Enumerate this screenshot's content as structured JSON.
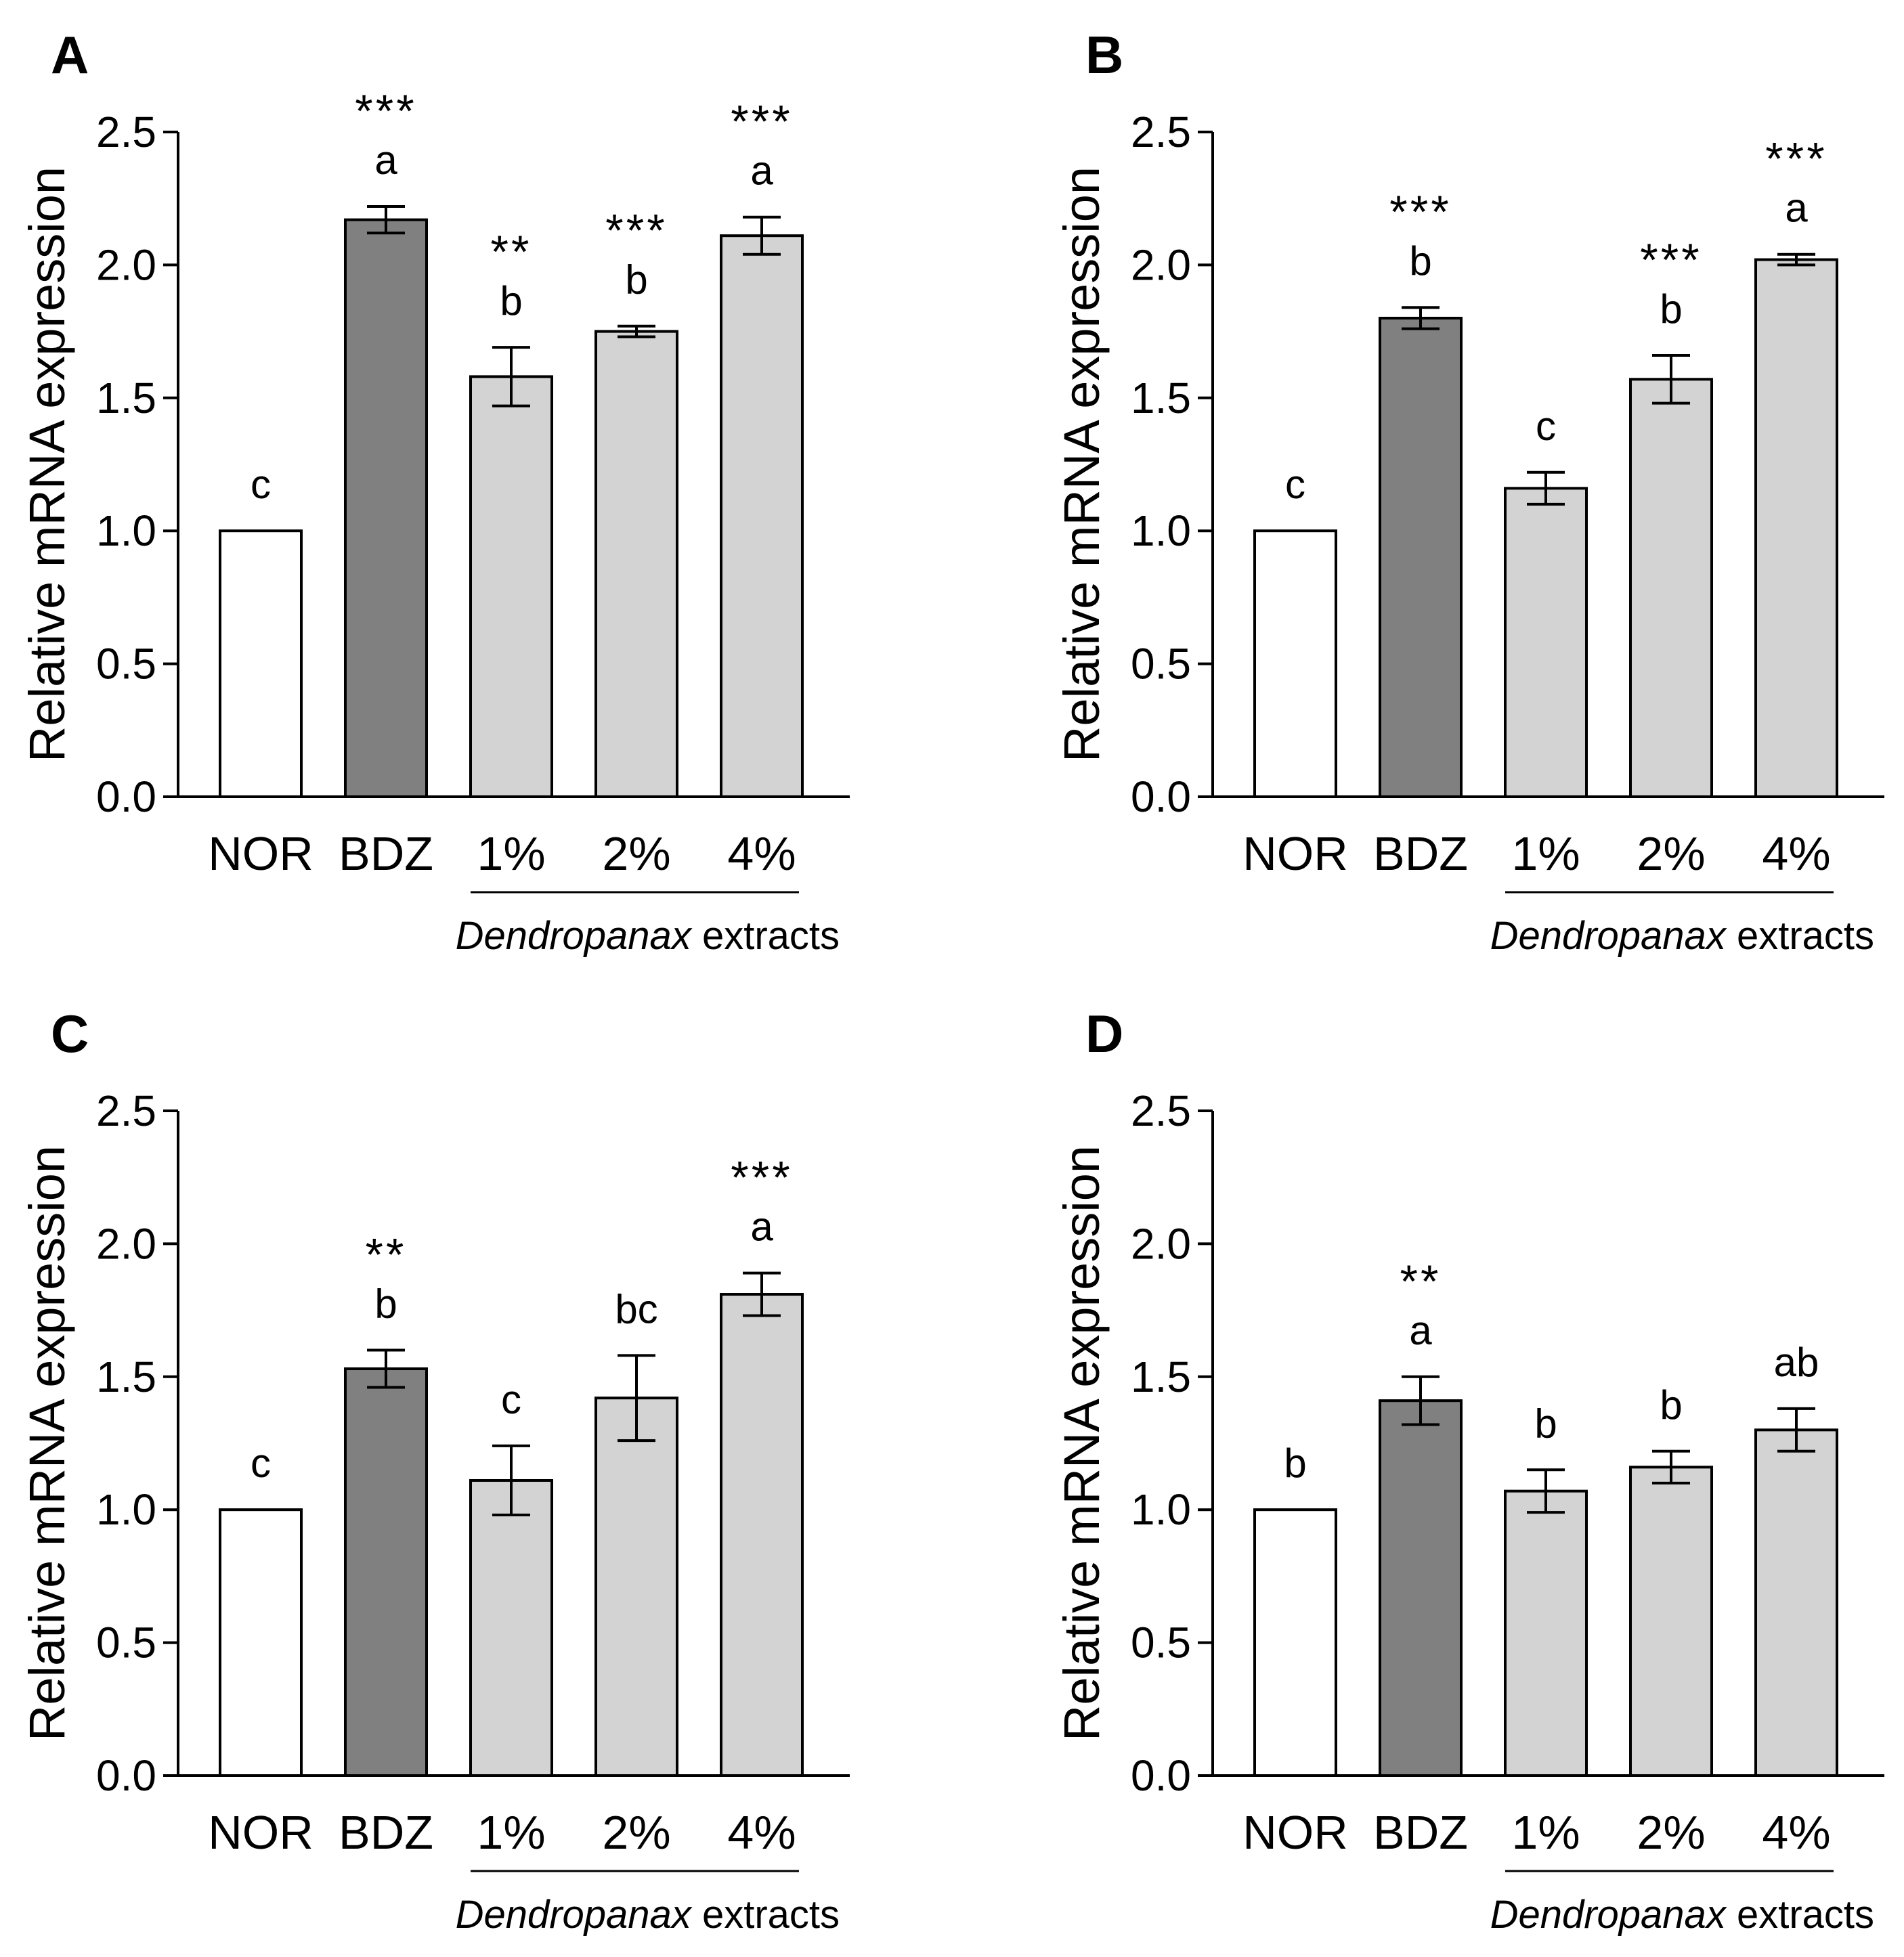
{
  "figure": {
    "categories": [
      "NOR",
      "BDZ",
      "1%",
      "2%",
      "4%"
    ],
    "group_label_italic": "Dendropanax",
    "group_label_rest": " extracts",
    "bar_colors": [
      "#ffffff",
      "#808080",
      "#d3d3d3",
      "#d3d3d3",
      "#d3d3d3"
    ]
  },
  "chart_data": [
    {
      "panel": "A",
      "type": "bar",
      "ylabel": "Relative mRNA expression",
      "ylim": [
        0,
        2.5
      ],
      "yticks": [
        "0.0",
        "0.5",
        "1.0",
        "1.5",
        "2.0",
        "2.5"
      ],
      "categories": [
        "NOR",
        "BDZ",
        "1%",
        "2%",
        "4%"
      ],
      "values": [
        1.0,
        2.17,
        1.58,
        1.75,
        2.11
      ],
      "errors": [
        0,
        0.05,
        0.11,
        0.02,
        0.07
      ],
      "letters": [
        "c",
        "a",
        "b",
        "b",
        "a"
      ],
      "stars": [
        "",
        "***",
        "**",
        "***",
        "***"
      ]
    },
    {
      "panel": "B",
      "type": "bar",
      "ylabel": "Relative mRNA expression",
      "ylim": [
        0,
        2.5
      ],
      "yticks": [
        "0.0",
        "0.5",
        "1.0",
        "1.5",
        "2.0",
        "2.5"
      ],
      "categories": [
        "NOR",
        "BDZ",
        "1%",
        "2%",
        "4%"
      ],
      "values": [
        1.0,
        1.8,
        1.16,
        1.57,
        2.02
      ],
      "errors": [
        0,
        0.04,
        0.06,
        0.09,
        0.02
      ],
      "letters": [
        "c",
        "b",
        "c",
        "b",
        "a"
      ],
      "stars": [
        "",
        "***",
        "",
        "***",
        "***"
      ]
    },
    {
      "panel": "C",
      "type": "bar",
      "ylabel": "Relative mRNA expression",
      "ylim": [
        0,
        2.5
      ],
      "yticks": [
        "0.0",
        "0.5",
        "1.0",
        "1.5",
        "2.0",
        "2.5"
      ],
      "categories": [
        "NOR",
        "BDZ",
        "1%",
        "2%",
        "4%"
      ],
      "values": [
        1.0,
        1.53,
        1.11,
        1.42,
        1.81
      ],
      "errors": [
        0,
        0.07,
        0.13,
        0.16,
        0.08
      ],
      "letters": [
        "c",
        "b",
        "c",
        "bc",
        "a"
      ],
      "stars": [
        "",
        "**",
        "",
        "",
        "***"
      ]
    },
    {
      "panel": "D",
      "type": "bar",
      "ylabel": "Relative mRNA expression",
      "ylim": [
        0,
        2.5
      ],
      "yticks": [
        "0.0",
        "0.5",
        "1.0",
        "1.5",
        "2.0",
        "2.5"
      ],
      "categories": [
        "NOR",
        "BDZ",
        "1%",
        "2%",
        "4%"
      ],
      "values": [
        1.0,
        1.41,
        1.07,
        1.16,
        1.3
      ],
      "errors": [
        0,
        0.09,
        0.08,
        0.06,
        0.08
      ],
      "letters": [
        "b",
        "a",
        "b",
        "b",
        "ab"
      ],
      "stars": [
        "",
        "**",
        "",
        "",
        ""
      ]
    }
  ]
}
